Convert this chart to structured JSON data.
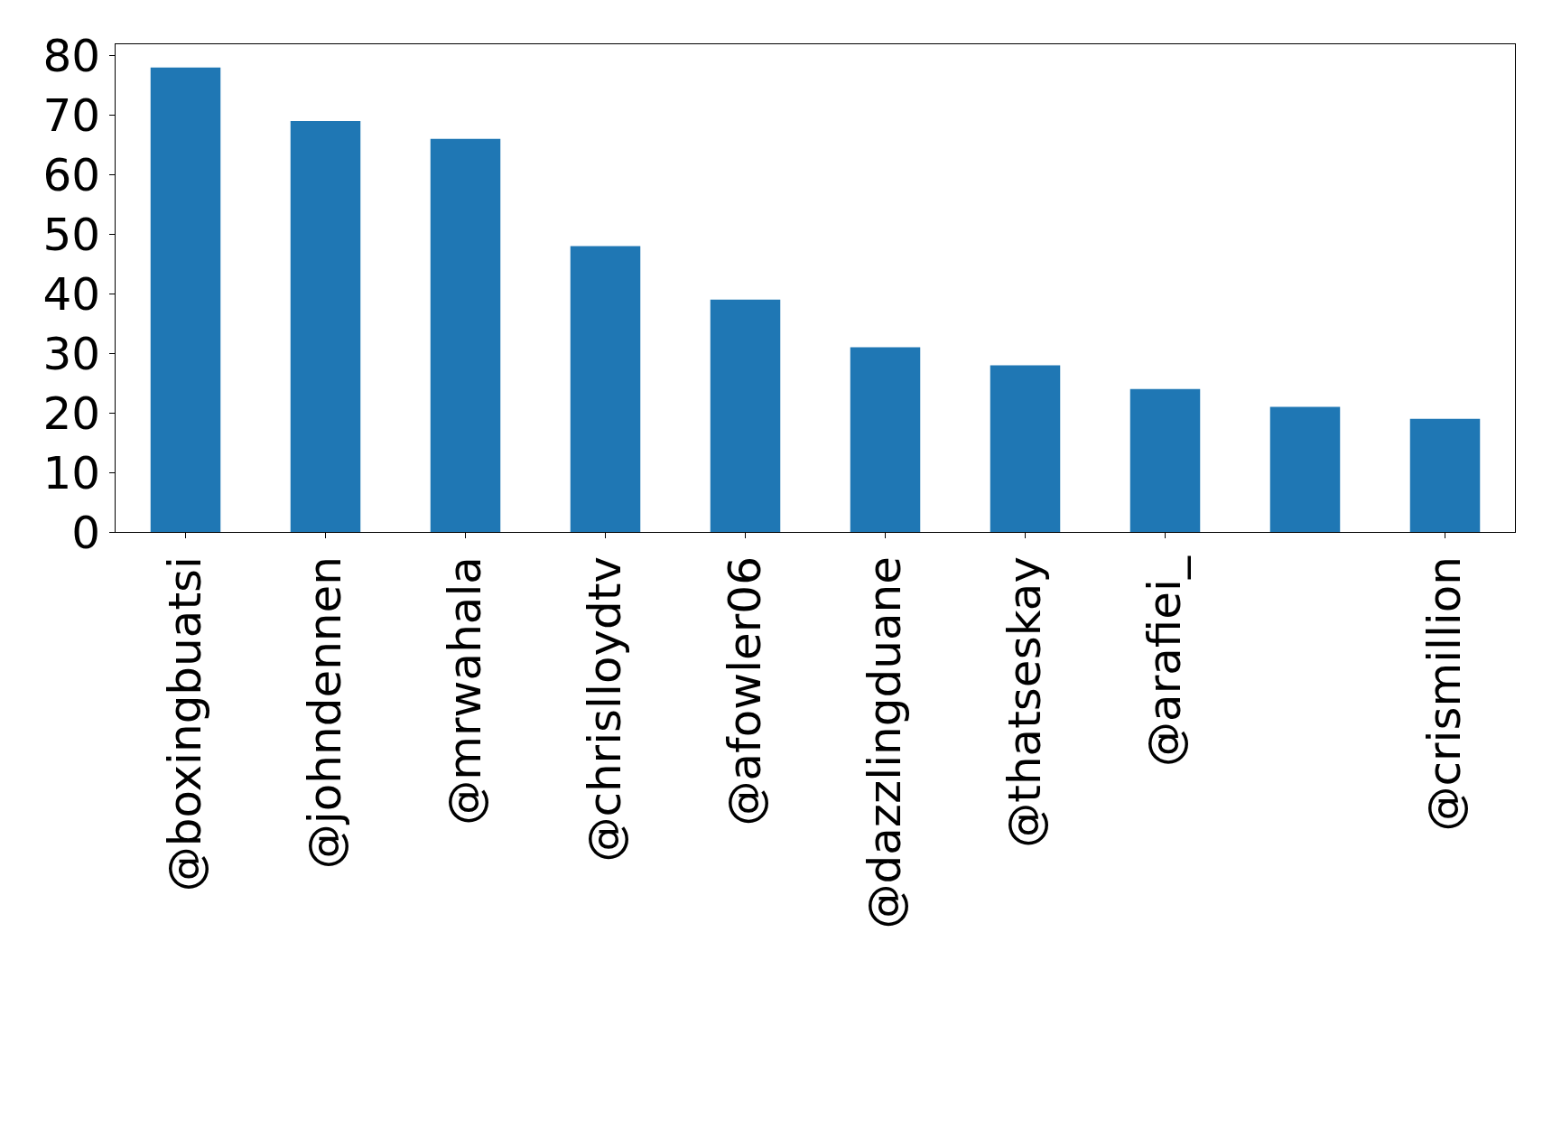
{
  "chart_data": {
    "type": "bar",
    "categories": [
      "@boxingbuatsi",
      "@johndennen",
      "@mrwahala",
      "@chrislloydtv",
      "@afowler06",
      "@dazzlingduane",
      "@thatseskay",
      "@arafiei_",
      null,
      "@crismillion"
    ],
    "values": [
      78,
      69,
      66,
      48,
      39,
      31,
      28,
      24,
      21,
      19
    ],
    "color": "#1f77b4",
    "ylim": [
      0,
      81.9
    ],
    "yticks": [
      0,
      10,
      20,
      30,
      40,
      50,
      60,
      70,
      80
    ]
  }
}
